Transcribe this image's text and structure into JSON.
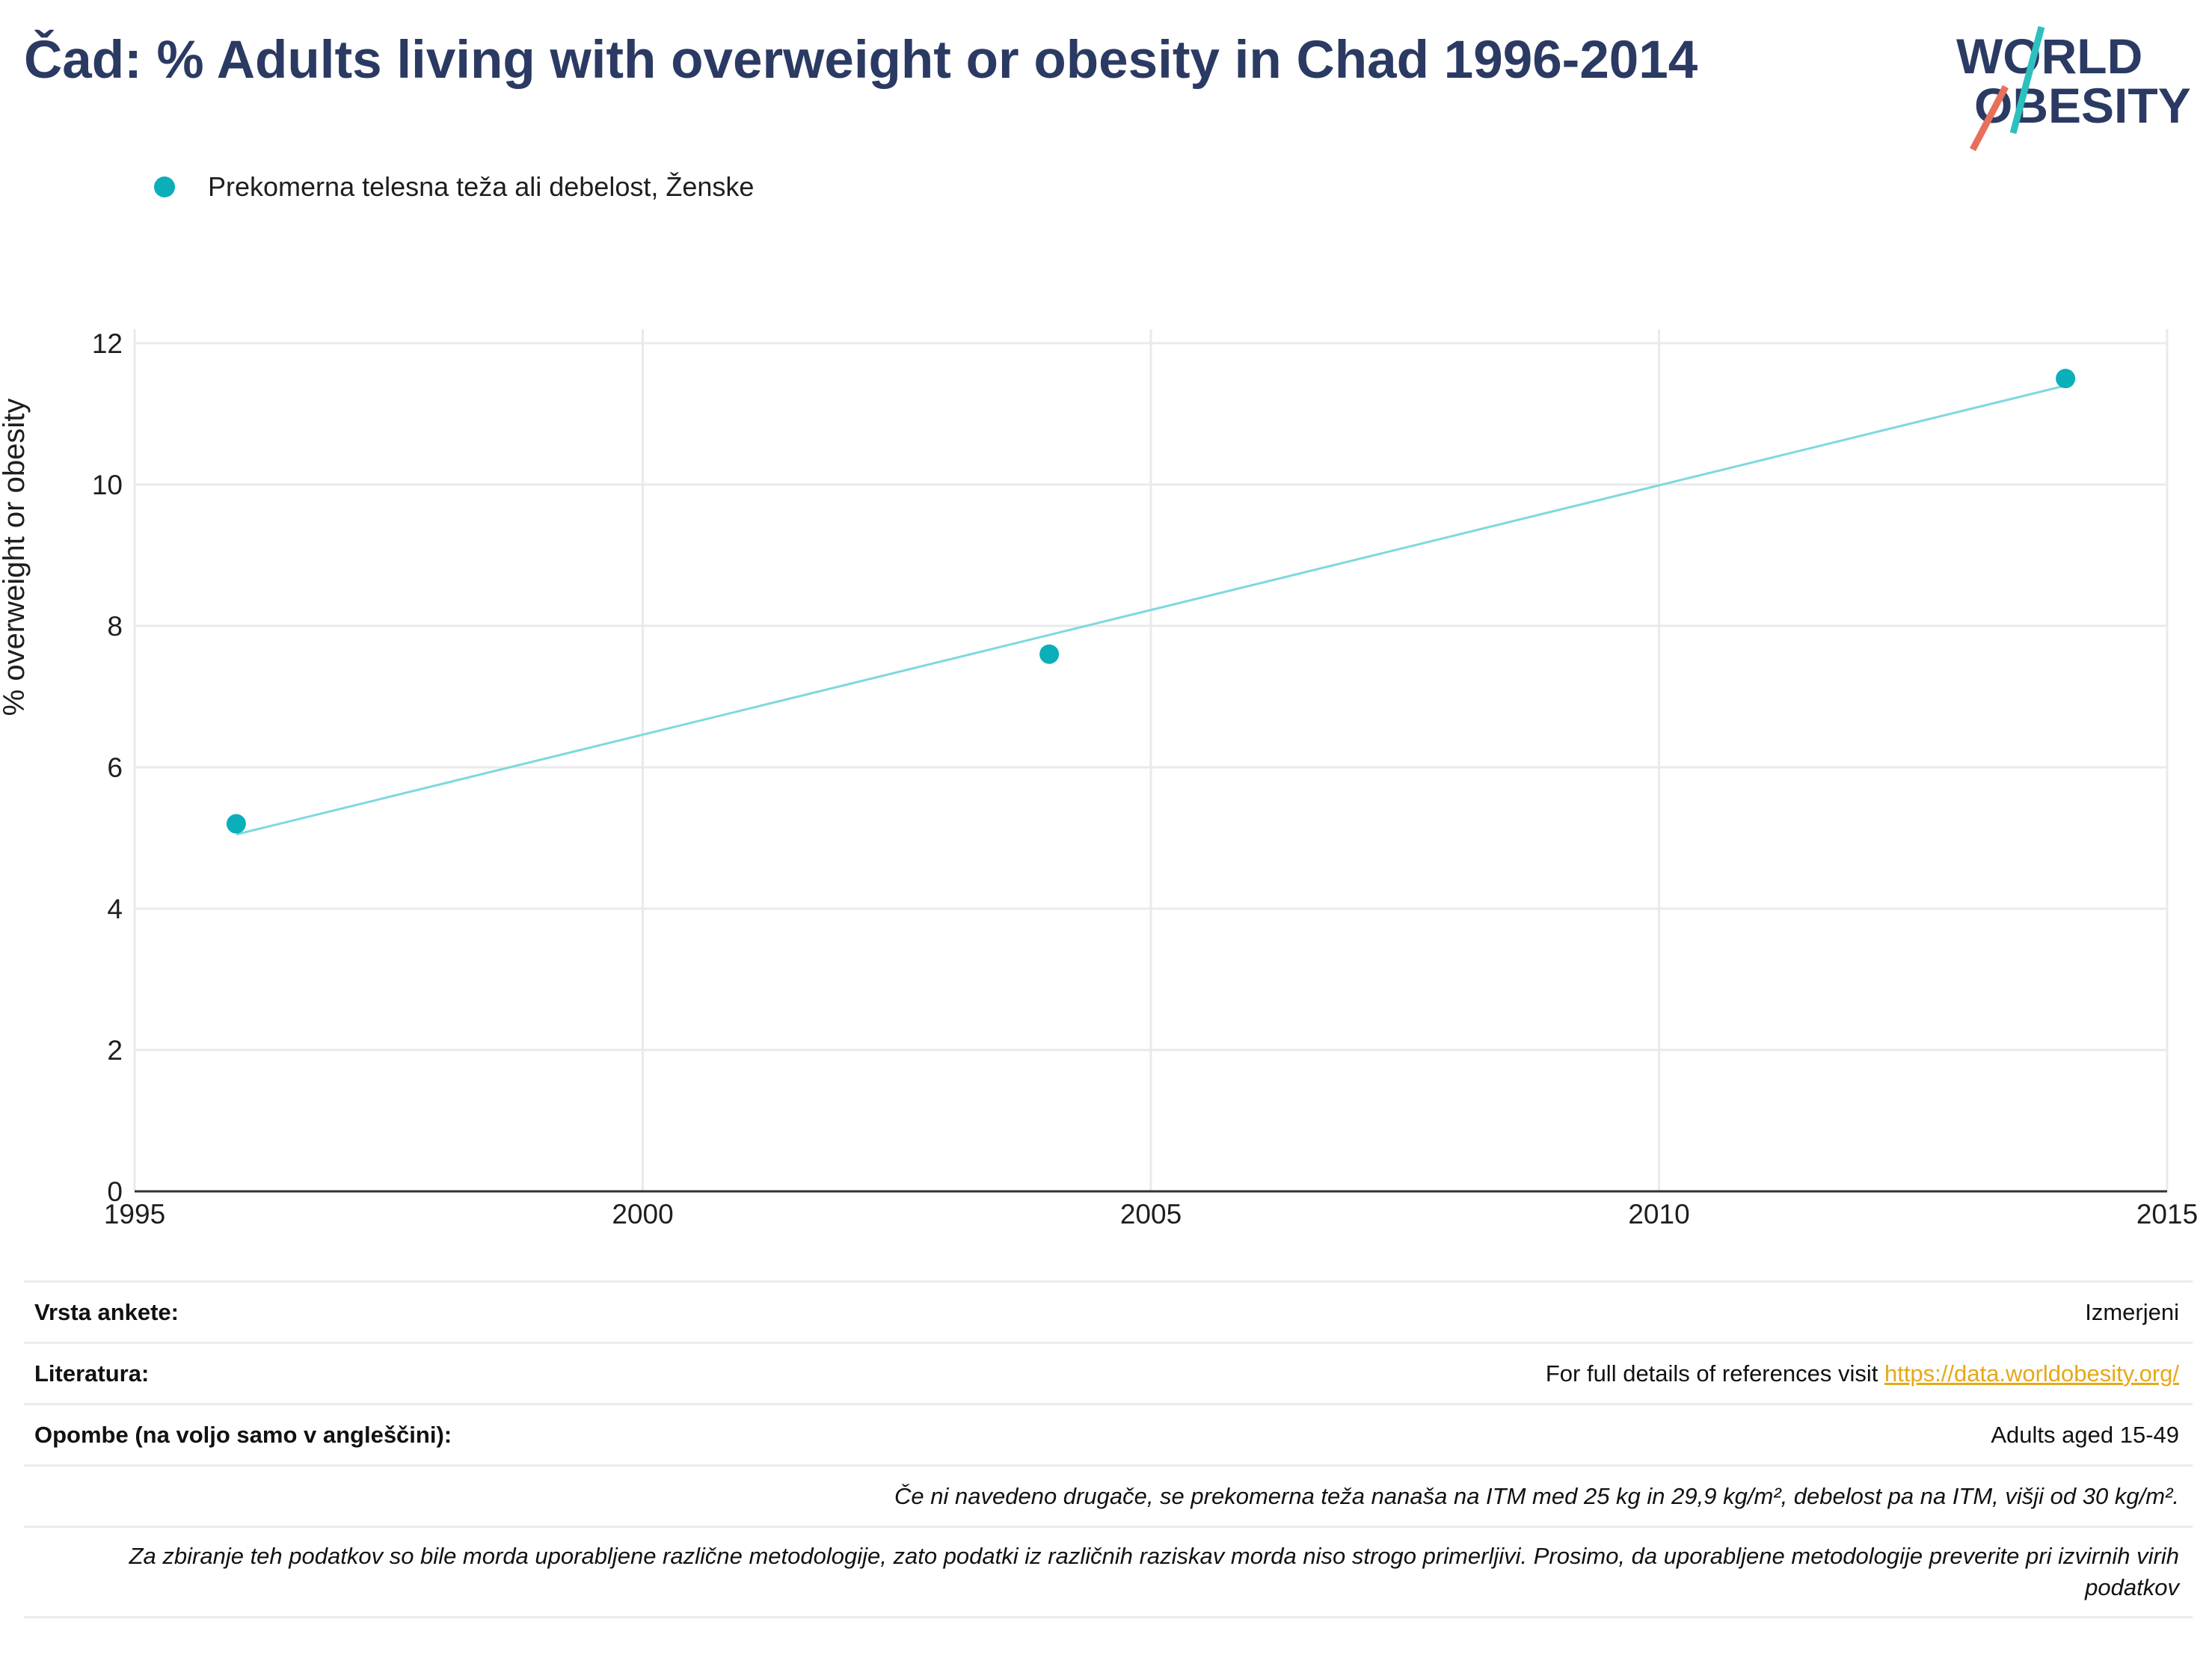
{
  "title": "Čad: % Adults living with overweight or obesity in Chad 1996-2014",
  "logo": {
    "line1": "WORLD",
    "line2": "OBESITY",
    "name": "world-obesity-logo"
  },
  "colors": {
    "title": "#2b3a63",
    "series": "#0aafba",
    "trend": "#7fd8dd",
    "link": "#e6a817",
    "grid": "#eaeaea"
  },
  "chart_data": {
    "type": "scatter",
    "title": "Čad: % Adults living with overweight or obesity in Chad 1996-2014",
    "ylabel": "% overweight or obesity",
    "xlabel": "",
    "xlim": [
      1995,
      2015
    ],
    "ylim": [
      0,
      12.2
    ],
    "x_ticks": [
      1995,
      2000,
      2005,
      2010,
      2015
    ],
    "y_ticks": [
      0,
      2,
      4,
      6,
      8,
      10,
      12
    ],
    "grid": true,
    "legend_position": "top-left",
    "series": [
      {
        "name": "Prekomerna telesna teža ali debelost, Ženske",
        "x": [
          1996,
          2004,
          2014
        ],
        "y": [
          5.2,
          7.6,
          11.5
        ]
      }
    ],
    "trendline": {
      "x": [
        1996,
        2014
      ],
      "y": [
        5.05,
        11.4
      ]
    }
  },
  "meta": {
    "survey_type_label": "Vrsta ankete:",
    "survey_type_value": "Izmerjeni",
    "references_label": "Literatura:",
    "references_text": "For full details of references visit ",
    "references_link": "https://data.worldobesity.org/",
    "notes_label": "Opombe (na voljo samo v angleščini):",
    "notes_value": "Adults aged 15-49",
    "definition_note": "Če ni navedeno drugače, se prekomerna teža nanaša na ITM med 25 kg in 29,9 kg/m², debelost pa na ITM, višji od 30 kg/m².",
    "methodology_note": "Za zbiranje teh podatkov so bile morda uporabljene različne metodologije, zato podatki iz različnih raziskav morda niso strogo primerljivi. Prosimo, da uporabljene metodologije preverite pri izvirnih virih podatkov"
  }
}
